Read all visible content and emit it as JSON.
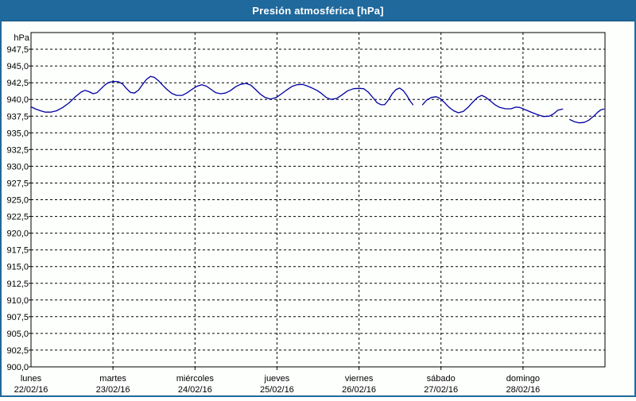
{
  "window": {
    "title": "Presión atmosférica [hPa]"
  },
  "colors": {
    "title_bar": "#1f699c",
    "window_border": "#1f699c",
    "background": "#fdfffd",
    "grid": "#000000",
    "line": "#0000A0",
    "title_text": "#ffffff"
  },
  "chart_data": {
    "type": "line",
    "title": "Presión atmosférica [hPa]",
    "ylabel": "hPa",
    "grid": "dashed",
    "legend": "none",
    "line_color": "#0000A0",
    "y_axis": {
      "min": 900.0,
      "max": 950.0,
      "tick_step": 2.5,
      "unit_label": "hPa",
      "tick_labels": [
        "947,5",
        "945,0",
        "942,5",
        "940,0",
        "937,5",
        "935,0",
        "932,5",
        "930,0",
        "927,5",
        "925,0",
        "922,5",
        "920,0",
        "917,5",
        "915,0",
        "912,5",
        "910,0",
        "907,5",
        "905,0",
        "902,5",
        "900,0"
      ]
    },
    "x_axis": {
      "span_hours": 168,
      "day_ticks": [
        {
          "weekday": "lunes",
          "date": "22/02/16",
          "hour": 0
        },
        {
          "weekday": "martes",
          "date": "23/02/16",
          "hour": 24
        },
        {
          "weekday": "miércoles",
          "date": "24/02/16",
          "hour": 48
        },
        {
          "weekday": "jueves",
          "date": "25/02/16",
          "hour": 72
        },
        {
          "weekday": "viernes",
          "date": "26/02/16",
          "hour": 96
        },
        {
          "weekday": "sábado",
          "date": "27/02/16",
          "hour": 120
        },
        {
          "weekday": "domingo",
          "date": "28/02/16",
          "hour": 144
        }
      ]
    },
    "series": [
      {
        "name": "Presión atmosférica [hPa]",
        "note": "hours from Monday 00:00 vs hPa; three segments separated by data gaps",
        "segments": [
          [
            [
              0,
              938.9
            ],
            [
              1.2,
              938.6
            ],
            [
              2.8,
              938.3
            ],
            [
              4.2,
              938.1
            ],
            [
              5.8,
              938.1
            ],
            [
              7.5,
              938.3
            ],
            [
              9.3,
              938.8
            ],
            [
              11.2,
              939.5
            ],
            [
              13,
              940.4
            ],
            [
              14.7,
              941.1
            ],
            [
              15.8,
              941.35
            ],
            [
              17,
              941.15
            ],
            [
              18.2,
              940.85
            ],
            [
              19.3,
              941.0
            ],
            [
              20.5,
              941.6
            ],
            [
              21.7,
              942.2
            ],
            [
              22.8,
              942.55
            ],
            [
              24.2,
              942.7
            ],
            [
              25.6,
              942.65
            ],
            [
              26.8,
              942.3
            ],
            [
              28,
              941.6
            ],
            [
              29.1,
              941.05
            ],
            [
              30.3,
              940.95
            ],
            [
              31.5,
              941.4
            ],
            [
              32.6,
              942.2
            ],
            [
              33.8,
              943.0
            ],
            [
              35,
              943.45
            ],
            [
              36.1,
              943.3
            ],
            [
              37.3,
              942.8
            ],
            [
              38.4,
              942.2
            ],
            [
              39.8,
              941.5
            ],
            [
              41.2,
              940.9
            ],
            [
              42.6,
              940.6
            ],
            [
              44.3,
              940.6
            ],
            [
              45.7,
              941.0
            ],
            [
              47.1,
              941.5
            ],
            [
              48.5,
              941.95
            ],
            [
              49.9,
              942.2
            ],
            [
              51.3,
              942.0
            ],
            [
              52.7,
              941.5
            ],
            [
              54.1,
              941.0
            ],
            [
              55.5,
              940.85
            ],
            [
              56.9,
              940.95
            ],
            [
              58.3,
              941.3
            ],
            [
              59.9,
              941.9
            ],
            [
              61.3,
              942.25
            ],
            [
              62.9,
              942.4
            ],
            [
              64.3,
              942.15
            ],
            [
              65.7,
              941.5
            ],
            [
              67.1,
              940.8
            ],
            [
              68.5,
              940.3
            ],
            [
              70.1,
              940.05
            ],
            [
              71.8,
              940.3
            ],
            [
              73.2,
              940.8
            ],
            [
              74.8,
              941.4
            ],
            [
              76.4,
              941.95
            ],
            [
              77.8,
              942.2
            ],
            [
              79.5,
              942.25
            ],
            [
              80.9,
              942.0
            ],
            [
              82.3,
              941.7
            ],
            [
              83.7,
              941.35
            ],
            [
              85,
              940.9
            ],
            [
              86.4,
              940.3
            ],
            [
              87.8,
              940.0
            ],
            [
              89.5,
              940.15
            ],
            [
              91.1,
              940.7
            ],
            [
              92.7,
              941.3
            ],
            [
              94.4,
              941.6
            ],
            [
              96,
              941.65
            ],
            [
              97.4,
              941.6
            ],
            [
              98.8,
              941.05
            ],
            [
              100.2,
              940.2
            ],
            [
              101.3,
              939.5
            ],
            [
              102.5,
              939.2
            ],
            [
              103.5,
              939.2
            ],
            [
              104.6,
              939.9
            ],
            [
              105.8,
              940.9
            ],
            [
              106.9,
              941.5
            ],
            [
              107.9,
              941.7
            ],
            [
              109,
              941.3
            ],
            [
              110,
              940.6
            ],
            [
              110.9,
              939.8
            ],
            [
              111.8,
              939.2
            ]
          ],
          [
            [
              114.6,
              939.2
            ],
            [
              115.8,
              939.9
            ],
            [
              117.2,
              940.3
            ],
            [
              118.6,
              940.4
            ],
            [
              119.7,
              940.15
            ],
            [
              120.9,
              939.6
            ],
            [
              122.3,
              938.85
            ],
            [
              123.7,
              938.3
            ],
            [
              125.1,
              938.0
            ],
            [
              126.5,
              938.2
            ],
            [
              127.9,
              938.8
            ],
            [
              129.3,
              939.6
            ],
            [
              130.7,
              940.3
            ],
            [
              131.9,
              940.6
            ],
            [
              133,
              940.35
            ],
            [
              134.4,
              939.8
            ],
            [
              135.8,
              939.2
            ],
            [
              137.2,
              938.8
            ],
            [
              138.9,
              938.6
            ],
            [
              140.5,
              938.6
            ],
            [
              141.9,
              938.85
            ],
            [
              143,
              938.8
            ],
            [
              143.8,
              938.65
            ],
            [
              145.2,
              938.35
            ],
            [
              146.8,
              938.0
            ],
            [
              148.4,
              937.7
            ],
            [
              150,
              937.45
            ],
            [
              151.7,
              937.5
            ],
            [
              153.1,
              937.9
            ],
            [
              154.2,
              938.4
            ],
            [
              155.6,
              938.55
            ]
          ],
          [
            [
              157.7,
              937.0
            ],
            [
              159.1,
              936.65
            ],
            [
              160.5,
              936.5
            ],
            [
              161.9,
              936.55
            ],
            [
              163.3,
              936.9
            ],
            [
              164.7,
              937.5
            ],
            [
              165.9,
              938.1
            ],
            [
              166.8,
              938.45
            ],
            [
              167.7,
              938.55
            ]
          ]
        ]
      }
    ]
  }
}
